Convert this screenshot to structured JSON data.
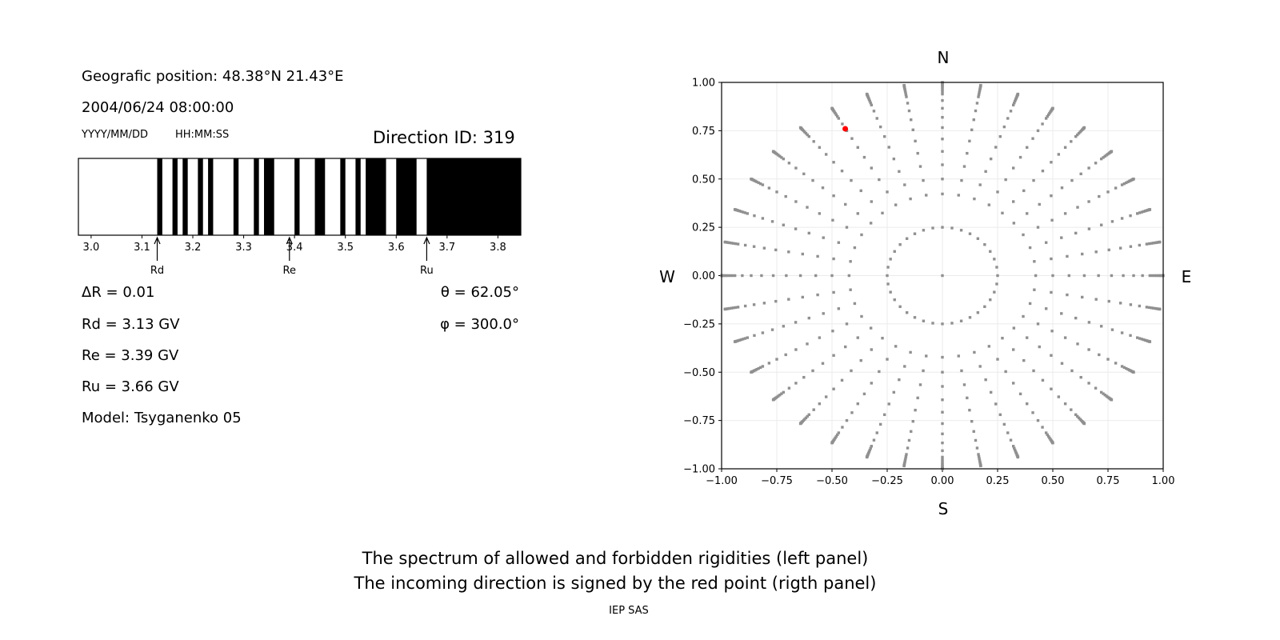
{
  "left_panel": {
    "position_line": "Geografic position: 48.38°N 21.43°E",
    "datetime": "2004/06/24 08:00:00",
    "date_format": "YYYY/MM/DD",
    "time_format": "HH:MM:SS",
    "direction_id": "Direction ID: 319",
    "delta_r": "ΔR = 0.01",
    "rd": "Rd = 3.13 GV",
    "re": "Re = 3.39 GV",
    "ru": "Ru = 3.66 GV",
    "model": "Model: Tsyganenko 05",
    "theta": "θ = 62.05°",
    "phi": "φ = 300.0°"
  },
  "caption": {
    "line1": "The spectrum of allowed and forbidden rigidities (left panel)",
    "line2": "The incoming direction is signed by the red point (rigth panel)",
    "credit": "IEP SAS"
  },
  "chart_data": [
    {
      "type": "bar",
      "description_kind": "rigidity spectrum (black = forbidden, white = allowed)",
      "xlim": [
        2.975,
        3.845
      ],
      "xticks": [
        "3.0",
        "3.1",
        "3.2",
        "3.3",
        "3.4",
        "3.5",
        "3.6",
        "3.7",
        "3.8"
      ],
      "black_intervals": [
        [
          3.13,
          3.14
        ],
        [
          3.16,
          3.17
        ],
        [
          3.18,
          3.19
        ],
        [
          3.21,
          3.22
        ],
        [
          3.23,
          3.24
        ],
        [
          3.28,
          3.29
        ],
        [
          3.32,
          3.33
        ],
        [
          3.34,
          3.36
        ],
        [
          3.4,
          3.41
        ],
        [
          3.44,
          3.46
        ],
        [
          3.49,
          3.5
        ],
        [
          3.52,
          3.53
        ],
        [
          3.54,
          3.58
        ],
        [
          3.6,
          3.64
        ],
        [
          3.66,
          3.845
        ]
      ],
      "markers": [
        {
          "label": "Rd",
          "x": 3.13
        },
        {
          "label": "Re",
          "x": 3.39
        },
        {
          "label": "Ru",
          "x": 3.66
        }
      ]
    },
    {
      "type": "scatter",
      "xlim": [
        -1,
        1
      ],
      "ylim": [
        -1,
        1
      ],
      "xticks": [
        "−1.00",
        "−0.75",
        "−0.50",
        "−0.25",
        "0.00",
        "0.25",
        "0.50",
        "0.75",
        "1.00"
      ],
      "yticks": [
        "−1.00",
        "−0.75",
        "−0.50",
        "−0.25",
        "0.00",
        "0.25",
        "0.50",
        "0.75",
        "1.00"
      ],
      "grid": true,
      "compass": {
        "n": "N",
        "s": "S",
        "e": "E",
        "w": "W"
      },
      "grid_points": {
        "color": "#909090",
        "center": [
          0,
          0
        ],
        "ring_radius": 0.25,
        "ring_azimuth_step_deg": 10,
        "ray_azimuth_step_deg": 10,
        "ray_zenith_deg": [
          25,
          30,
          35,
          40,
          45,
          50,
          55,
          60,
          65,
          70,
          72,
          74,
          76,
          78,
          80,
          82,
          84,
          86,
          88,
          90
        ]
      },
      "highlight_point": {
        "x": -0.44,
        "y": 0.76,
        "color": "#ff0000"
      }
    }
  ]
}
